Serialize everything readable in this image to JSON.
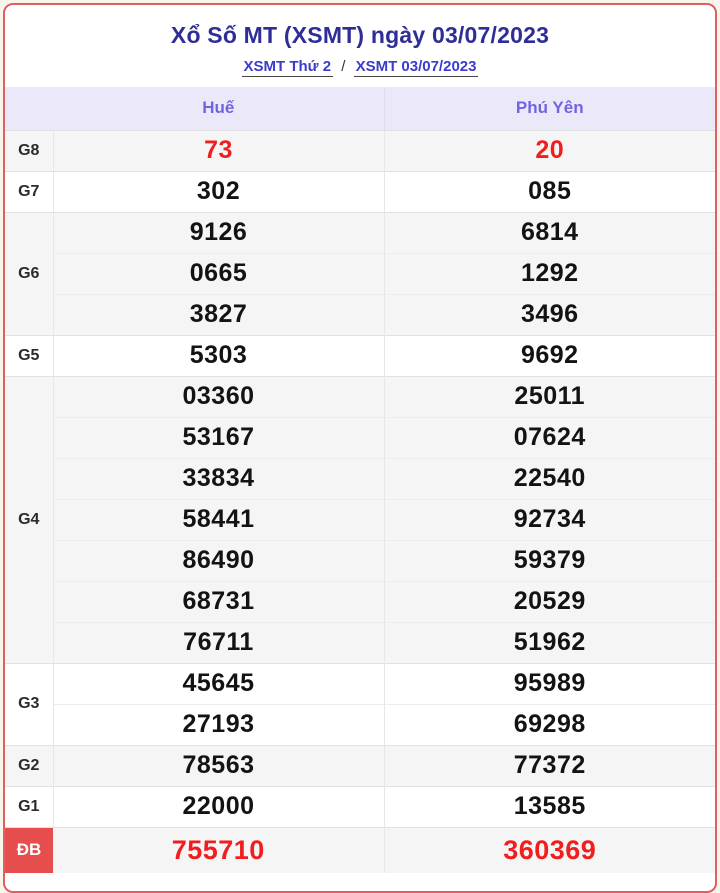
{
  "header": {
    "title": "Xổ Số MT (XSMT) ngày 03/07/2023",
    "breadcrumb": {
      "link_day": "XSMT Thứ 2",
      "separator": "/",
      "link_date": "XSMT 03/07/2023"
    }
  },
  "table": {
    "columns": [
      "Huế",
      "Phú Yên"
    ],
    "groups": [
      {
        "label": "G8",
        "highlight": true,
        "special": false,
        "rows": [
          [
            "73",
            "20"
          ]
        ]
      },
      {
        "label": "G7",
        "highlight": false,
        "special": false,
        "rows": [
          [
            "302",
            "085"
          ]
        ]
      },
      {
        "label": "G6",
        "highlight": false,
        "special": false,
        "rows": [
          [
            "9126",
            "6814"
          ],
          [
            "0665",
            "1292"
          ],
          [
            "3827",
            "3496"
          ]
        ]
      },
      {
        "label": "G5",
        "highlight": false,
        "special": false,
        "rows": [
          [
            "5303",
            "9692"
          ]
        ]
      },
      {
        "label": "G4",
        "highlight": false,
        "special": false,
        "rows": [
          [
            "03360",
            "25011"
          ],
          [
            "53167",
            "07624"
          ],
          [
            "33834",
            "22540"
          ],
          [
            "58441",
            "92734"
          ],
          [
            "86490",
            "59379"
          ],
          [
            "68731",
            "20529"
          ],
          [
            "76711",
            "51962"
          ]
        ]
      },
      {
        "label": "G3",
        "highlight": false,
        "special": false,
        "rows": [
          [
            "45645",
            "95989"
          ],
          [
            "27193",
            "69298"
          ]
        ]
      },
      {
        "label": "G2",
        "highlight": false,
        "special": false,
        "rows": [
          [
            "78563",
            "77372"
          ]
        ]
      },
      {
        "label": "G1",
        "highlight": false,
        "special": false,
        "rows": [
          [
            "22000",
            "13585"
          ]
        ]
      },
      {
        "label": "ĐB",
        "highlight": true,
        "special": true,
        "rows": [
          [
            "755710",
            "360369"
          ]
        ]
      }
    ]
  },
  "colors": {
    "card_border": "#e15f5f",
    "page_background": "#f8f5ec",
    "title_text": "#2e2e96",
    "breadcrumb_link": "#3c3ccc",
    "column_header_text": "#7164e0",
    "column_header_background": "#ebe9f9",
    "stripe_row_background": "#f5f5f6",
    "value_text": "#131313",
    "highlight_value_text": "#f01e1e",
    "db_label_background": "#e64d4d",
    "db_label_text": "#ffffff"
  }
}
